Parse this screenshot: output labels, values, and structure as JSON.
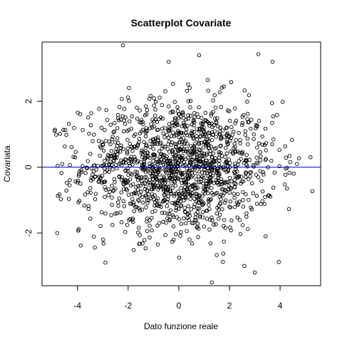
{
  "chart_data": {
    "type": "scatter",
    "title": "Scatterplot Covariate",
    "xlabel": "Dato funzione reale",
    "ylabel": "Covariata",
    "xlim": [
      -5.4,
      5.6
    ],
    "ylim": [
      -3.6,
      3.8
    ],
    "x_ticks": [
      -4,
      -2,
      0,
      2,
      4
    ],
    "x_tick_labels": [
      "-4",
      "-2",
      "0",
      "2",
      "4"
    ],
    "y_ticks": [
      -2,
      0,
      2
    ],
    "y_tick_labels": [
      "-2",
      "0",
      "2"
    ],
    "grid": false,
    "point_style": "open-circle",
    "n_points": 1500,
    "x_distribution": {
      "mean": 0,
      "sd": 1.9,
      "range": [
        -4.9,
        5.3
      ]
    },
    "y_distribution": {
      "mean": 0,
      "sd": 1.0,
      "range": [
        -3.5,
        3.7
      ]
    },
    "highlighted_points": [
      {
        "x": -2.2,
        "y": 3.7
      },
      {
        "x": 0.8,
        "y": 3.4
      },
      {
        "x": 3.7,
        "y": 3.2
      },
      {
        "x": -0.4,
        "y": 3.2
      },
      {
        "x": 1.3,
        "y": -3.5
      },
      {
        "x": -2.9,
        "y": -2.9
      },
      {
        "x": 3.0,
        "y": -3.2
      },
      {
        "x": -4.8,
        "y": -2.0
      },
      {
        "x": 5.2,
        "y": 0.3
      },
      {
        "x": -4.9,
        "y": 1.1
      }
    ],
    "reference_line": {
      "type": "horizontal",
      "y": 0,
      "color": "#0000cc"
    }
  }
}
